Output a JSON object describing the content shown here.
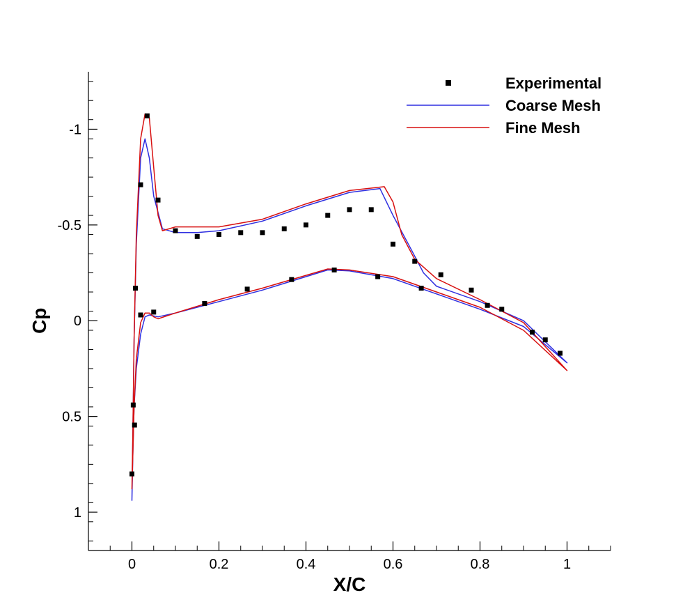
{
  "chart_data": {
    "type": "line",
    "title": "",
    "xlabel": "X/C",
    "ylabel": "Cp",
    "xlim": [
      -0.1,
      1.1
    ],
    "ylim": [
      -1.3,
      1.2
    ],
    "y_inverted": true,
    "grid": false,
    "legend_position": "top-right",
    "x_ticks": [
      0,
      0.2,
      0.4,
      0.6,
      0.8,
      1
    ],
    "x_tick_labels": [
      "0",
      "0.2",
      "0.4",
      "0.6",
      "0.8",
      "1"
    ],
    "y_ticks": [
      -1,
      -0.5,
      0,
      0.5,
      1
    ],
    "y_tick_labels": [
      "-1",
      "-0.5",
      "0",
      "0.5",
      "1"
    ],
    "series": [
      {
        "name": "Experimental",
        "kind": "scatter",
        "color": "#000000",
        "x": [
          0.035,
          0.02,
          0.06,
          0.1,
          0.15,
          0.2,
          0.25,
          0.3,
          0.35,
          0.4,
          0.45,
          0.5,
          0.55,
          0.6,
          0.65,
          0.71,
          0.78,
          0.817,
          0.85,
          0.92,
          0.95,
          0.984,
          0.008,
          0.02,
          0.05,
          0.167,
          0.265,
          0.367,
          0.465,
          0.565,
          0.665,
          0.003,
          0.006,
          0.0
        ],
        "y": [
          -1.07,
          -0.71,
          -0.63,
          -0.47,
          -0.44,
          -0.45,
          -0.46,
          -0.46,
          -0.48,
          -0.5,
          -0.55,
          -0.58,
          -0.58,
          -0.4,
          -0.31,
          -0.24,
          -0.16,
          -0.08,
          -0.06,
          0.06,
          0.1,
          0.17,
          -0.17,
          -0.03,
          -0.045,
          -0.09,
          -0.165,
          -0.215,
          -0.265,
          -0.23,
          -0.17,
          0.44,
          0.545,
          0.8
        ]
      },
      {
        "name": "Coarse Mesh",
        "kind": "line",
        "color": "#2f2fe0",
        "x": [
          0.0,
          0.002,
          0.005,
          0.01,
          0.02,
          0.03,
          0.04,
          0.05,
          0.07,
          0.1,
          0.15,
          0.2,
          0.3,
          0.4,
          0.5,
          0.57,
          0.6,
          0.64,
          0.67,
          0.7,
          0.8,
          0.9,
          1.0,
          0.9,
          0.8,
          0.7,
          0.6,
          0.5,
          0.45,
          0.3,
          0.2,
          0.1,
          0.06,
          0.04,
          0.03,
          0.02,
          0.01,
          0.005,
          0.002,
          0.0
        ],
        "y": [
          0.94,
          0.6,
          0.1,
          -0.4,
          -0.85,
          -0.95,
          -0.85,
          -0.65,
          -0.48,
          -0.46,
          -0.46,
          -0.47,
          -0.52,
          -0.6,
          -0.67,
          -0.69,
          -0.55,
          -0.38,
          -0.25,
          -0.18,
          -0.1,
          0.0,
          0.22,
          0.03,
          -0.06,
          -0.14,
          -0.22,
          -0.26,
          -0.265,
          -0.16,
          -0.1,
          -0.04,
          -0.02,
          -0.03,
          -0.02,
          0.07,
          0.25,
          0.45,
          0.7,
          0.94
        ]
      },
      {
        "name": "Fine Mesh",
        "kind": "line",
        "color": "#d81010",
        "x": [
          0.0,
          0.002,
          0.005,
          0.01,
          0.02,
          0.03,
          0.04,
          0.05,
          0.06,
          0.07,
          0.1,
          0.15,
          0.2,
          0.3,
          0.4,
          0.5,
          0.58,
          0.6,
          0.62,
          0.65,
          0.7,
          0.8,
          0.9,
          1.0,
          0.9,
          0.8,
          0.7,
          0.6,
          0.5,
          0.45,
          0.3,
          0.2,
          0.1,
          0.06,
          0.05,
          0.04,
          0.03,
          0.02,
          0.01,
          0.005,
          0.002,
          0.0
        ],
        "y": [
          0.88,
          0.6,
          0.1,
          -0.45,
          -0.95,
          -1.08,
          -1.06,
          -0.8,
          -0.55,
          -0.47,
          -0.49,
          -0.49,
          -0.49,
          -0.53,
          -0.61,
          -0.68,
          -0.7,
          -0.62,
          -0.45,
          -0.32,
          -0.22,
          -0.11,
          0.01,
          0.26,
          0.05,
          -0.07,
          -0.15,
          -0.23,
          -0.265,
          -0.27,
          -0.17,
          -0.11,
          -0.04,
          -0.01,
          -0.02,
          -0.04,
          -0.04,
          0.01,
          0.2,
          0.45,
          0.7,
          0.88
        ]
      }
    ]
  },
  "legend": {
    "items": [
      {
        "label": "Experimental",
        "marker": "square",
        "color": "#000000"
      },
      {
        "label": "Coarse Mesh",
        "marker": "line",
        "color": "#2f2fe0"
      },
      {
        "label": "Fine Mesh",
        "marker": "line",
        "color": "#d81010"
      }
    ]
  }
}
